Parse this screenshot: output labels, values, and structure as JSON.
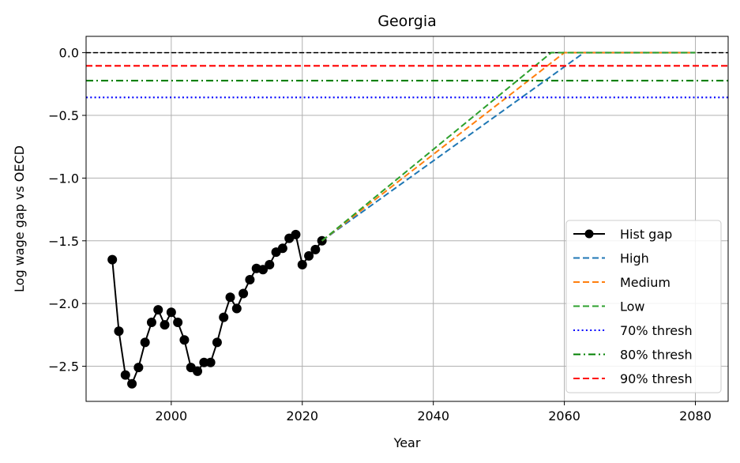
{
  "chart_data": {
    "type": "line",
    "title": "Georgia",
    "xlabel": "Year",
    "ylabel": "Log wage gap vs OECD",
    "xlim": [
      1987,
      2085
    ],
    "ylim": [
      -2.78,
      0.13
    ],
    "xticks": [
      2000,
      2020,
      2040,
      2060,
      2080
    ],
    "yticks": [
      0.0,
      -0.5,
      -1.0,
      -1.5,
      -2.0,
      -2.5
    ],
    "ytick_labels": [
      "0.0",
      "−0.5",
      "−1.0",
      "−1.5",
      "−2.0",
      "−2.5"
    ],
    "grid": true,
    "legend_position": "lower right",
    "zero_line": {
      "y": 0.0,
      "color": "#000000",
      "style": "dashed"
    },
    "series": [
      {
        "name": "Hist gap",
        "color": "#000000",
        "style": "solid-marker",
        "x": [
          1991,
          1992,
          1993,
          1994,
          1995,
          1996,
          1997,
          1998,
          1999,
          2000,
          2001,
          2002,
          2003,
          2004,
          2005,
          2006,
          2007,
          2008,
          2009,
          2010,
          2011,
          2012,
          2013,
          2014,
          2015,
          2016,
          2017,
          2018,
          2019,
          2020,
          2021,
          2022,
          2023
        ],
        "y": [
          -1.65,
          -2.22,
          -2.57,
          -2.64,
          -2.51,
          -2.31,
          -2.15,
          -2.05,
          -2.17,
          -2.07,
          -2.15,
          -2.29,
          -2.51,
          -2.54,
          -2.47,
          -2.47,
          -2.31,
          -2.11,
          -1.95,
          -2.04,
          -1.92,
          -1.81,
          -1.72,
          -1.73,
          -1.69,
          -1.59,
          -1.56,
          -1.48,
          -1.45,
          -1.69,
          -1.62,
          -1.57,
          -1.5
        ]
      },
      {
        "name": "High",
        "color": "#1f77b4",
        "style": "dashed",
        "x": [
          2023,
          2063,
          2080
        ],
        "y": [
          -1.5,
          0.0,
          0.0
        ]
      },
      {
        "name": "Medium",
        "color": "#ff7f0e",
        "style": "dashed",
        "x": [
          2023,
          2060,
          2080
        ],
        "y": [
          -1.5,
          0.0,
          0.0
        ]
      },
      {
        "name": "Low",
        "color": "#2ca02c",
        "style": "dashed",
        "x": [
          2023,
          2058,
          2080
        ],
        "y": [
          -1.5,
          0.0,
          0.0
        ]
      },
      {
        "name": "70% thresh",
        "color": "#0000ff",
        "style": "dotted",
        "y_const": -0.357
      },
      {
        "name": "80% thresh",
        "color": "#008000",
        "style": "dashdot",
        "y_const": -0.223
      },
      {
        "name": "90% thresh",
        "color": "#ff0000",
        "style": "dashed",
        "y_const": -0.105
      }
    ]
  }
}
